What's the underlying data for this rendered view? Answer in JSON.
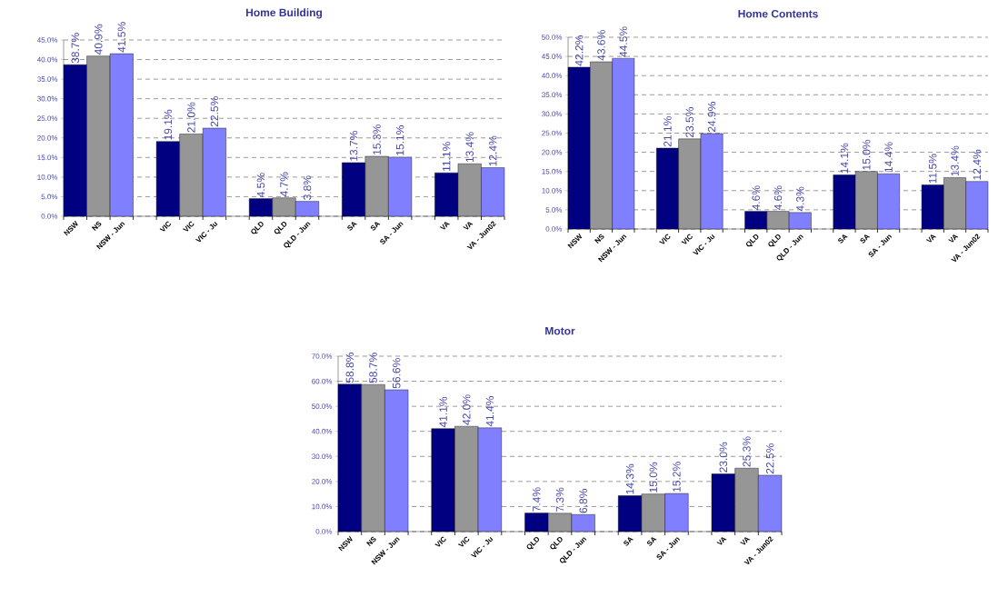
{
  "chart_data": [
    {
      "type": "bar",
      "title": "Home Building",
      "categories": [
        "NSW",
        "NS",
        "NSW - Jun",
        null,
        "VIC",
        "VIC",
        "VIC - Ju",
        null,
        "QLD",
        "QLD",
        "QLD - Jun",
        null,
        "SA",
        "SA",
        "SA - Jun",
        null,
        "VA",
        "VA",
        "VA - Jun02"
      ],
      "values": [
        38.7,
        40.9,
        41.5,
        null,
        19.1,
        21.0,
        22.5,
        null,
        4.5,
        4.7,
        3.8,
        null,
        13.7,
        15.3,
        15.1,
        null,
        11.1,
        13.4,
        12.4
      ],
      "colors": [
        "#000080",
        "#969696",
        "#8080ff",
        null,
        "#000080",
        "#969696",
        "#8080ff",
        null,
        "#000080",
        "#969696",
        "#8080ff",
        null,
        "#000080",
        "#969696",
        "#8080ff",
        null,
        "#000080",
        "#969696",
        "#8080ff"
      ],
      "value_labels": [
        "38.7%",
        "40.9%",
        "41.5%",
        null,
        "19.1%",
        "21.0%",
        "22.5%",
        null,
        "4.5%",
        "4.7%",
        "3.8%",
        null,
        "13.7%",
        "15.3%",
        "15.1%",
        null,
        "11.1%",
        "13.4%",
        "12.4%"
      ],
      "ylim": [
        0,
        45
      ],
      "yticks": [
        {
          "value": 0,
          "label": "0.0%"
        },
        {
          "value": 5,
          "label": "5.0%"
        },
        {
          "value": 10,
          "label": "10.0%"
        },
        {
          "value": 15,
          "label": "15.0%"
        },
        {
          "value": 20,
          "label": "20.0%"
        },
        {
          "value": 25,
          "label": "25.0%"
        },
        {
          "value": 30,
          "label": "30.0%"
        },
        {
          "value": 35,
          "label": "35.0%"
        },
        {
          "value": 40,
          "label": "40.0%"
        },
        {
          "value": 45,
          "label": "45.0%"
        }
      ],
      "grid": "y"
    },
    {
      "type": "bar",
      "title": "Home Contents",
      "categories": [
        "NSW",
        "NS",
        "NSW - Jun",
        null,
        "VIC",
        "VIC",
        "VIC - Ju",
        null,
        "QLD",
        "QLD",
        "QLD - Jun",
        null,
        "SA",
        "SA",
        "SA - Jun",
        null,
        "VA",
        "VA",
        "VA - Jun02"
      ],
      "values": [
        42.2,
        43.6,
        44.5,
        null,
        21.1,
        23.5,
        24.9,
        null,
        4.6,
        4.6,
        4.3,
        null,
        14.1,
        15.0,
        14.4,
        null,
        11.5,
        13.4,
        12.4
      ],
      "colors": [
        "#000080",
        "#969696",
        "#8080ff",
        null,
        "#000080",
        "#969696",
        "#8080ff",
        null,
        "#000080",
        "#969696",
        "#8080ff",
        null,
        "#000080",
        "#969696",
        "#8080ff",
        null,
        "#000080",
        "#969696",
        "#8080ff"
      ],
      "value_labels": [
        "42.2%",
        "43.6%",
        "44.5%",
        null,
        "21.1%",
        "23.5%",
        "24.9%",
        null,
        "4.6%",
        "4.6%",
        "4.3%",
        null,
        "14.1%",
        "15.0%",
        "14.4%",
        null,
        "11.5%",
        "13.4%",
        "12.4%"
      ],
      "ylim": [
        0,
        50
      ],
      "yticks": [
        {
          "value": 0,
          "label": "0.0%"
        },
        {
          "value": 5,
          "label": "5.0%"
        },
        {
          "value": 10,
          "label": "10.0%"
        },
        {
          "value": 15,
          "label": "15.0%"
        },
        {
          "value": 20,
          "label": "20.0%"
        },
        {
          "value": 25,
          "label": "25.0%"
        },
        {
          "value": 30,
          "label": "30.0%"
        },
        {
          "value": 35,
          "label": "35.0%"
        },
        {
          "value": 40,
          "label": "40.0%"
        },
        {
          "value": 45,
          "label": "45.0%"
        },
        {
          "value": 50,
          "label": "50.0%"
        }
      ],
      "grid": "y"
    },
    {
      "type": "bar",
      "title": "Motor",
      "categories": [
        "NSW",
        "NS",
        "NSW - Jun",
        null,
        "VIC",
        "VIC",
        "VIC - Ju",
        null,
        "QLD",
        "QLD",
        "QLD - Jun",
        null,
        "SA",
        "SA",
        "SA - Jun",
        null,
        "VA",
        "VA",
        "VA - Jun02"
      ],
      "values": [
        58.8,
        58.7,
        56.6,
        null,
        41.1,
        42.0,
        41.4,
        null,
        7.4,
        7.3,
        6.8,
        null,
        14.3,
        15.0,
        15.2,
        null,
        23.0,
        25.3,
        22.5
      ],
      "colors": [
        "#000080",
        "#969696",
        "#8080ff",
        null,
        "#000080",
        "#969696",
        "#8080ff",
        null,
        "#000080",
        "#969696",
        "#8080ff",
        null,
        "#000080",
        "#969696",
        "#8080ff",
        null,
        "#000080",
        "#969696",
        "#8080ff"
      ],
      "value_labels": [
        "58.8%",
        "58.7%",
        "56.6%",
        null,
        "41.1%",
        "42.0%",
        "41.4%",
        null,
        "7.4%",
        "7.3%",
        "6.8%",
        null,
        "14.3%",
        "15.0%",
        "15.2%",
        null,
        "23.0%",
        "25.3%",
        "22.5%"
      ],
      "ylim": [
        0,
        70
      ],
      "yticks": [
        {
          "value": 0,
          "label": "0.0%"
        },
        {
          "value": 10,
          "label": "10.0%"
        },
        {
          "value": 20,
          "label": "20.0%"
        },
        {
          "value": 30,
          "label": "30.0%"
        },
        {
          "value": 40,
          "label": "40.0%"
        },
        {
          "value": 50,
          "label": "50.0%"
        },
        {
          "value": 60,
          "label": "60.0%"
        },
        {
          "value": 70,
          "label": "70.0%"
        }
      ],
      "grid": "y"
    }
  ]
}
